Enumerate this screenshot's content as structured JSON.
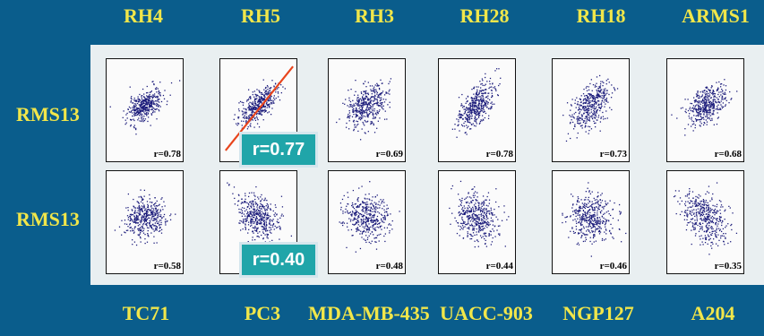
{
  "columns": [
    "RH4",
    "RH5",
    "RH3",
    "RH28",
    "RH18",
    "ARMS1"
  ],
  "rows": [
    {
      "label": "RMS13",
      "correlations": [
        "r=0.78",
        "",
        "r=0.69",
        "r=0.78",
        "r=0.73",
        "r=0.68"
      ],
      "slopes": [
        0.65,
        0.75,
        0.8,
        1.0,
        0.9,
        0.7
      ],
      "spreads": [
        0.28,
        0.28,
        0.4,
        0.32,
        0.36,
        0.38
      ]
    },
    {
      "label": "RMS13",
      "correlations": [
        "r=0.58",
        "",
        "r=0.48",
        "r=0.44",
        "r=0.46",
        "r=0.35"
      ],
      "slopes": [
        0.5,
        0.3,
        0.55,
        0.5,
        0.6,
        0.35
      ],
      "spreads": [
        0.45,
        0.6,
        0.55,
        0.6,
        0.55,
        0.7
      ]
    }
  ],
  "callouts": {
    "top": "r=0.77",
    "bottom": "r=0.40"
  },
  "bottom_labels": [
    "TC71",
    "PC3",
    "MDA-MB-435",
    "UACC-903",
    "NGP127",
    "A204"
  ],
  "colors": {
    "background": "#0a5d8c",
    "label": "#f1e64a",
    "dots": "#1a1a7a",
    "fit_line": "#e8441c",
    "callout": "#20a5a9"
  }
}
